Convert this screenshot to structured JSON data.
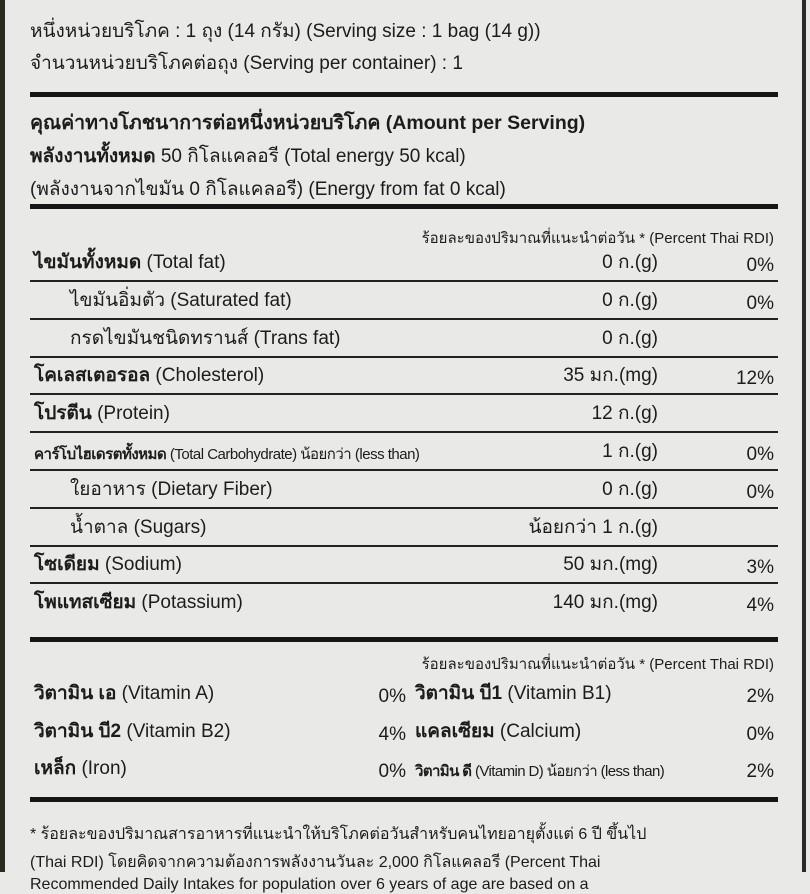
{
  "serving": {
    "size": "หนึ่งหน่วยบริโภค : 1 ถุง (14 กรัม) (Serving size : 1 bag (14 g))",
    "per_container": "จำนวนหน่วยบริโภคต่อถุง (Serving per container) : 1"
  },
  "amount": {
    "heading": "คุณค่าทางโภชนาการต่อหนึ่งหน่วยบริโภค (Amount per Serving)",
    "energy_bold": "พลังงานทั้งหมด",
    "energy_rest": " 50 กิโลแคลอรี (Total energy 50 kcal)",
    "energy_fat": "(พลังงานจากไขมัน 0 กิโลแคลอรี) (Energy from fat 0 kcal)"
  },
  "rdi_header": "ร้อยละของปริมาณที่แนะนำต่อวัน * (Percent Thai RDI)",
  "nutrients": [
    {
      "th": "ไขมันทั้งหมด",
      "en": " (Total fat)",
      "amount": "0 ก.(g)",
      "pct": "0%"
    },
    {
      "th": "ไขมันอิ่มตัว",
      "en": " (Saturated fat)",
      "amount": "0 ก.(g)",
      "pct": "0%"
    },
    {
      "th": "กรดไขมันชนิดทรานส์",
      "en": " (Trans fat)",
      "amount": "0 ก.(g)",
      "pct": ""
    },
    {
      "th": "โคเลสเตอรอล",
      "en": " (Cholesterol)",
      "amount": "35 มก.(mg)",
      "pct": "12%"
    },
    {
      "th": "โปรตีน",
      "en": " (Protein)",
      "amount": "12 ก.(g)",
      "pct": ""
    },
    {
      "th": "คาร์โบไฮเดรตทั้งหมด",
      "en": " (Total Carbohydrate) น้อยกว่า (less than)",
      "amount": "1 ก.(g)",
      "pct": "0%"
    },
    {
      "th": "ใยอาหาร",
      "en": " (Dietary Fiber)",
      "amount": "0 ก.(g)",
      "pct": "0%"
    },
    {
      "th": "น้ำตาล",
      "en": " (Sugars)",
      "amount": "น้อยกว่า 1 ก.(g)",
      "pct": ""
    },
    {
      "th": "โซเดียม",
      "en": " (Sodium)",
      "amount": "50 มก.(mg)",
      "pct": "3%"
    },
    {
      "th": "โพแทสเซียม",
      "en": " (Potassium)",
      "amount": "140 มก.(mg)",
      "pct": "4%"
    }
  ],
  "vitamins": [
    [
      {
        "th": "วิตามิน เอ",
        "en": " (Vitamin A)",
        "pct": "0%"
      },
      {
        "th": "วิตามิน บี1",
        "en": " (Vitamin B1)",
        "pct": "2%"
      }
    ],
    [
      {
        "th": "วิตามิน บี2",
        "en": " (Vitamin B2)",
        "pct": "4%"
      },
      {
        "th": "แคลเซียม",
        "en": " (Calcium)",
        "pct": "0%"
      }
    ],
    [
      {
        "th": "เหล็ก",
        "en": " (Iron)",
        "pct": "0%"
      },
      {
        "th": "วิตามิน ดี",
        "en": " (Vitamin D) น้อยกว่า (less than)",
        "pct": "2%"
      }
    ]
  ],
  "footnote": [
    "* ร้อยละของปริมาณสารอาหารที่แนะนำให้บริโภคต่อวันสำหรับคนไทยอายุตั้งแต่ 6 ปี ขึ้นไป",
    "(Thai RDI) โดยคิดจากความต้องการพลังงานวันละ 2,000 กิโลแคลอรี (Percent Thai",
    "Recommended Daily Intakes for population over 6 years of age are based on a"
  ]
}
